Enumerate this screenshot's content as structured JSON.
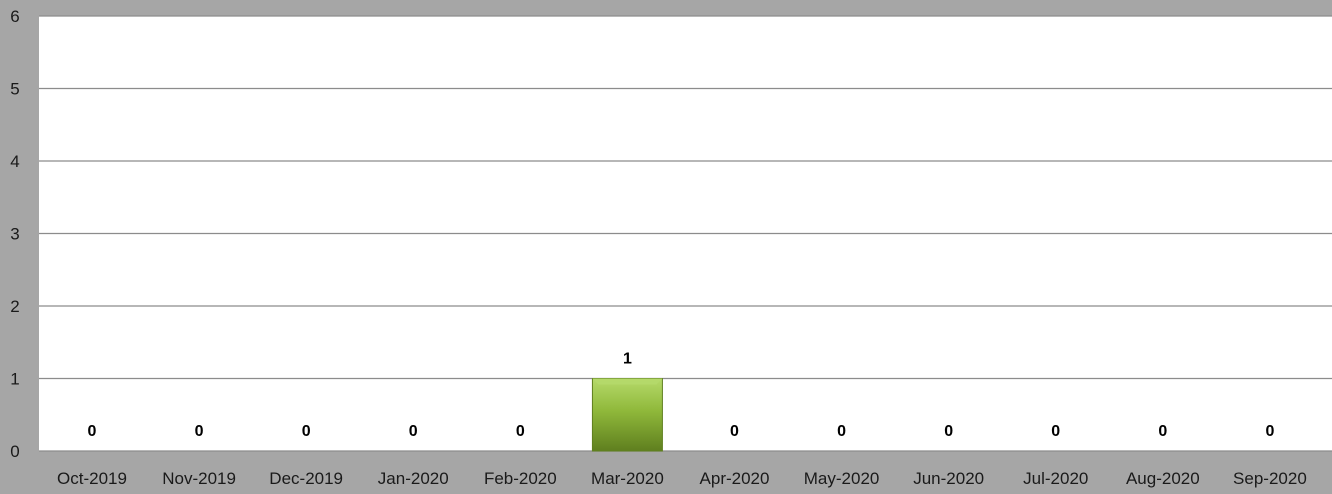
{
  "chart_data": {
    "type": "bar",
    "categories": [
      "Oct-2019",
      "Nov-2019",
      "Dec-2019",
      "Jan-2020",
      "Feb-2020",
      "Mar-2020",
      "Apr-2020",
      "May-2020",
      "Jun-2020",
      "Jul-2020",
      "Aug-2020",
      "Sep-2020"
    ],
    "values": [
      0,
      0,
      0,
      0,
      0,
      1,
      0,
      0,
      0,
      0,
      0,
      0
    ],
    "data_labels": [
      "0",
      "0",
      "0",
      "0",
      "0",
      "1",
      "0",
      "0",
      "0",
      "0",
      "0",
      "0"
    ],
    "title": "",
    "xlabel": "",
    "ylabel": "",
    "ylim": [
      0,
      6
    ],
    "yticks": [
      "0",
      "1",
      "2",
      "3",
      "4",
      "5",
      "6"
    ],
    "grid": true,
    "legend": "none",
    "colors": {
      "bar_light": "#b5d96a",
      "bar_mid": "#8fb83a",
      "bar_dark": "#5f7f1f",
      "outer_background": "#a6a6a6",
      "plot_background": "#ffffff",
      "gridline": "#8c8c8c"
    }
  }
}
